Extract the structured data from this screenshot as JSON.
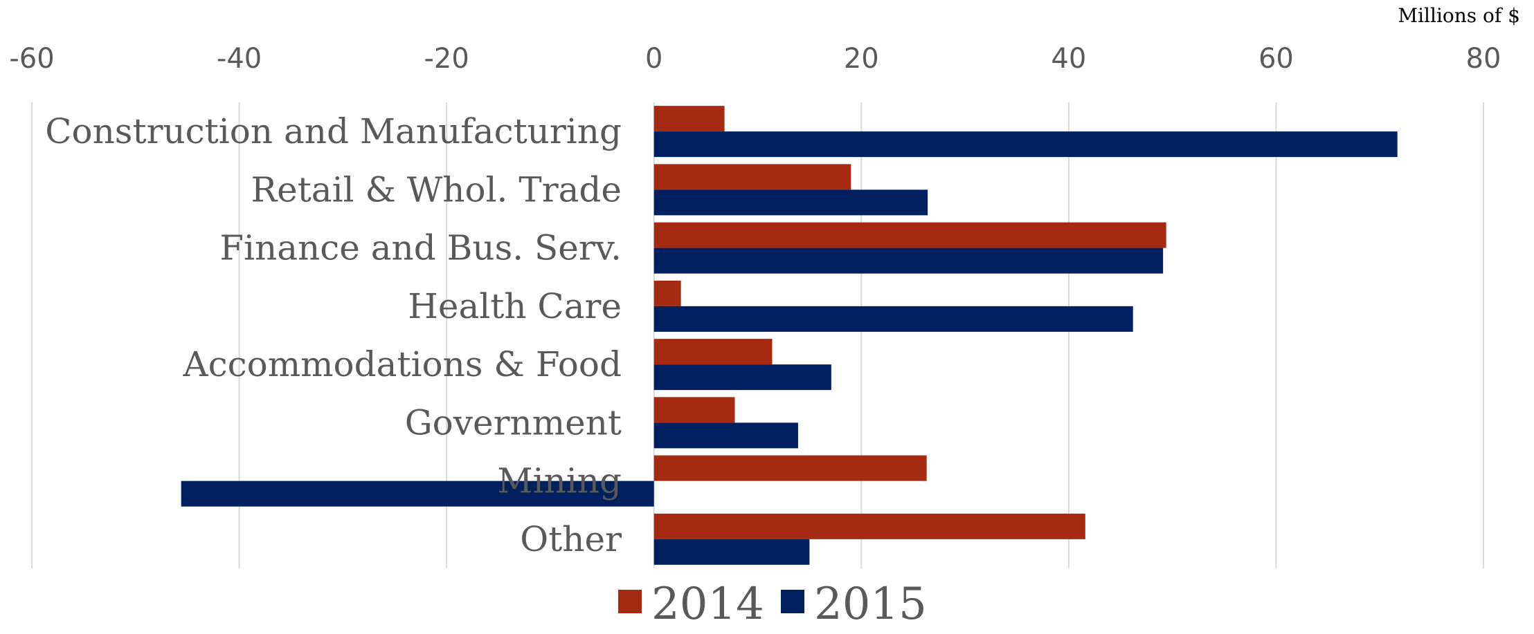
{
  "chart_data": {
    "type": "bar",
    "orientation": "horizontal",
    "unit_label": "Millions of $",
    "categories": [
      "Construction and Manufacturing",
      "Retail & Whol. Trade",
      "Finance and Bus. Serv.",
      "Health Care",
      "Accommodations & Food",
      "Government",
      "Mining",
      "Other"
    ],
    "series": [
      {
        "name": "2014",
        "color": "#A52A11",
        "values": [
          6.8,
          19.0,
          49.4,
          2.6,
          11.4,
          7.8,
          26.3,
          41.6
        ]
      },
      {
        "name": "2015",
        "color": "#002060",
        "values": [
          71.7,
          26.4,
          49.1,
          46.2,
          17.1,
          13.9,
          -45.6,
          15.0
        ]
      }
    ],
    "xlim": [
      -60,
      80
    ],
    "xticks": [
      -60,
      -40,
      -20,
      0,
      20,
      40,
      60,
      80
    ],
    "xtick_labels": [
      "-60",
      "-40",
      "-20",
      "0",
      "20",
      "40",
      "60",
      "80"
    ],
    "grid": true,
    "legend_position": "bottom"
  }
}
